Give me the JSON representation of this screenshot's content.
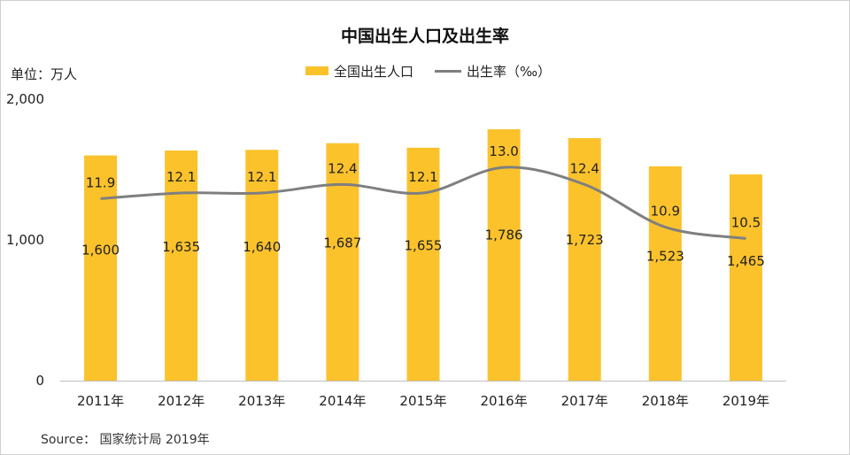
{
  "chart_data": {
    "type": "bar",
    "title": "中国出生人口及出生率",
    "unit_label": "单位：万人",
    "categories": [
      "2011年",
      "2012年",
      "2013年",
      "2014年",
      "2015年",
      "2016年",
      "2017年",
      "2018年",
      "2019年"
    ],
    "series": [
      {
        "name": "全国出生人口",
        "type": "bar",
        "values": [
          1600,
          1635,
          1640,
          1687,
          1655,
          1786,
          1723,
          1523,
          1465
        ],
        "labels": [
          "1,600",
          "1,635",
          "1,640",
          "1,687",
          "1,655",
          "1,786",
          "1,723",
          "1,523",
          "1,465"
        ],
        "color": "#fbc22c"
      },
      {
        "name": "出生率（‰）",
        "type": "line",
        "values": [
          11.9,
          12.1,
          12.1,
          12.4,
          12.1,
          13.0,
          12.4,
          10.9,
          10.5
        ],
        "labels": [
          "11.9",
          "12.1",
          "12.1",
          "12.4",
          "12.1",
          "13.0",
          "12.4",
          "10.9",
          "10.5"
        ],
        "color": "#7f7f7f"
      }
    ],
    "y_ticks": [
      {
        "value": 0,
        "label": "0"
      },
      {
        "value": 1000,
        "label": "1,000"
      },
      {
        "value": 2000,
        "label": "2,000"
      }
    ],
    "ylim": [
      0,
      2000
    ],
    "grid": false,
    "legend_position": "top-center",
    "source": "Source： 国家统计局 2019年"
  }
}
